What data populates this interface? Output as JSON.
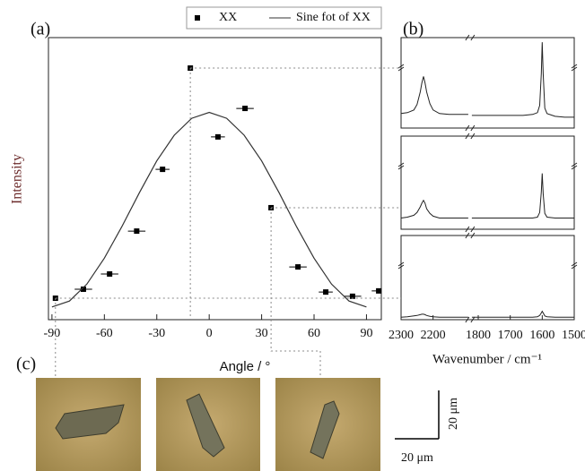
{
  "chart_data": [
    {
      "type": "scatter",
      "panel_label": "(a)",
      "xlabel": "Angle / °",
      "ylabel": "Intensity",
      "xlim": [
        -92,
        98.5
      ],
      "ylim": [
        0,
        1
      ],
      "xticks": [
        -90,
        -60,
        -30,
        0,
        30,
        60,
        90
      ],
      "legend": "top",
      "series": [
        {
          "name": "XX",
          "color": "#000000",
          "x": [
            -88,
            -72,
            -57,
            -41.5,
            -26.7,
            -10.8,
            5,
            20.5,
            35.4,
            50.8,
            66.7,
            82,
            97
          ],
          "values": [
            0.076,
            0.108,
            0.162,
            0.314,
            0.533,
            0.892,
            0.648,
            0.749,
            0.397,
            0.187,
            0.098,
            0.083,
            0.102
          ],
          "xerr": [
            0,
            5,
            5,
            5,
            4,
            0,
            4,
            5,
            0,
            5,
            4,
            5,
            4
          ]
        },
        {
          "name": "Sine fot of XX",
          "type": "line",
          "color": "#333333",
          "x": [
            -90,
            -80,
            -70,
            -60,
            -50,
            -40,
            -30,
            -20,
            -10,
            0,
            10,
            20,
            30,
            40,
            50,
            60,
            70,
            80,
            90
          ],
          "values": [
            0.045,
            0.066,
            0.126,
            0.218,
            0.33,
            0.45,
            0.563,
            0.654,
            0.714,
            0.735,
            0.714,
            0.654,
            0.563,
            0.45,
            0.33,
            0.218,
            0.126,
            0.066,
            0.045
          ]
        }
      ]
    },
    {
      "type": "line",
      "panel_label": "(b)",
      "xlim": [
        2300,
        1500
      ],
      "axis_break": [
        2090,
        1820
      ],
      "ylim": [
        0,
        1
      ],
      "color": "#222222",
      "x": [
        2300,
        2280,
        2260,
        2250,
        2240,
        2235,
        2230,
        2225,
        2220,
        2210,
        2200,
        2180,
        2150,
        2120,
        2090,
        null,
        1820,
        1780,
        1740,
        1700,
        1660,
        1630,
        1615,
        1608,
        1603,
        1600,
        1597,
        1592,
        1585,
        1560,
        1530,
        1500
      ],
      "values": [
        0.16,
        0.17,
        0.2,
        0.26,
        0.4,
        0.5,
        0.57,
        0.5,
        0.4,
        0.27,
        0.2,
        0.16,
        0.15,
        0.15,
        0.15,
        null,
        0.14,
        0.14,
        0.14,
        0.14,
        0.14,
        0.15,
        0.17,
        0.25,
        0.6,
        0.95,
        0.6,
        0.22,
        0.16,
        0.13,
        0.12,
        0.12
      ]
    },
    {
      "type": "line",
      "xlim": [
        2300,
        1500
      ],
      "axis_break": [
        2090,
        1820
      ],
      "ylim": [
        0,
        1
      ],
      "color": "#222222",
      "x": [
        2300,
        2280,
        2260,
        2250,
        2240,
        2235,
        2230,
        2225,
        2220,
        2210,
        2200,
        2180,
        2150,
        2120,
        2090,
        null,
        1820,
        1780,
        1740,
        1700,
        1660,
        1630,
        1615,
        1608,
        1603,
        1600,
        1597,
        1592,
        1585,
        1560,
        1530,
        1500
      ],
      "values": [
        0.12,
        0.13,
        0.15,
        0.18,
        0.24,
        0.28,
        0.31,
        0.28,
        0.22,
        0.17,
        0.14,
        0.12,
        0.12,
        0.12,
        0.12,
        null,
        0.12,
        0.12,
        0.12,
        0.12,
        0.12,
        0.12,
        0.13,
        0.18,
        0.4,
        0.6,
        0.38,
        0.17,
        0.13,
        0.12,
        0.12,
        0.12
      ]
    },
    {
      "type": "line",
      "xlim": [
        2300,
        1500
      ],
      "axis_break": [
        2090,
        1820
      ],
      "ylim": [
        0,
        1
      ],
      "color": "#222222",
      "xlabel": "Wavenumber / cm⁻¹",
      "xticks": [
        2300,
        2200,
        1800,
        1700,
        1600,
        1500
      ],
      "x": [
        2300,
        2280,
        2260,
        2250,
        2240,
        2235,
        2230,
        2225,
        2220,
        2210,
        2200,
        2180,
        2150,
        2120,
        2090,
        null,
        1820,
        1780,
        1740,
        1700,
        1660,
        1630,
        1615,
        1608,
        1603,
        1600,
        1597,
        1592,
        1585,
        1560,
        1530,
        1500
      ],
      "values": [
        0.03,
        0.035,
        0.045,
        0.05,
        0.06,
        0.065,
        0.065,
        0.06,
        0.05,
        0.04,
        0.035,
        0.03,
        0.03,
        0.03,
        0.03,
        null,
        0.03,
        0.03,
        0.03,
        0.03,
        0.03,
        0.03,
        0.035,
        0.05,
        0.08,
        0.1,
        0.08,
        0.045,
        0.035,
        0.03,
        0.03,
        0.03
      ]
    }
  ],
  "images": {
    "label": "(c)"
  },
  "scale_bar": {
    "vertical": "20 μm",
    "horizontal": "20 μm"
  }
}
